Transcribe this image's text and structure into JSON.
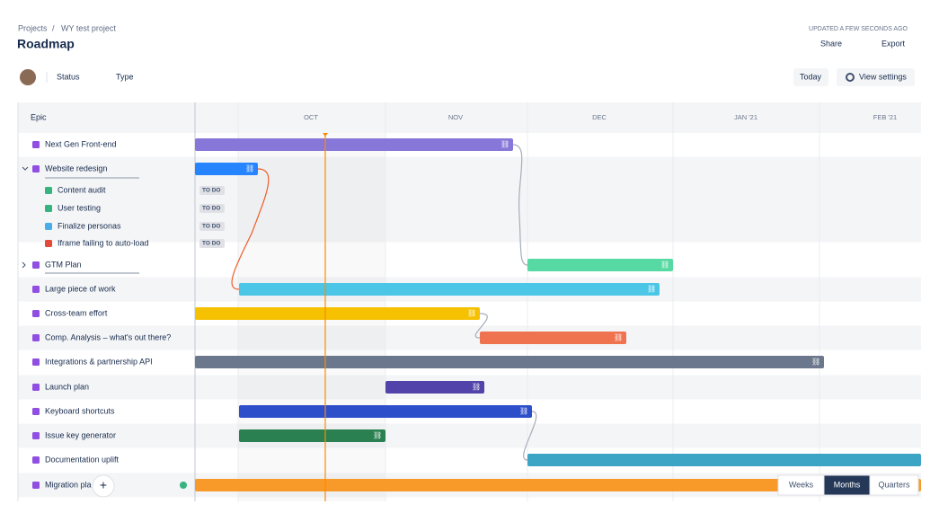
{
  "header": {
    "breadcrumb": [
      "Projects",
      "WY test project"
    ],
    "separator": "/",
    "title": "Roadmap",
    "updated": "UPDATED A FEW SECONDS AGO",
    "actions": [
      "Share",
      "Export"
    ]
  },
  "toolbar": {
    "filters": [
      "Status",
      "Type"
    ],
    "buttons": [
      "Today",
      "View settings"
    ]
  },
  "timeline": {
    "column_header": "Epic",
    "months": [
      "OCT",
      "NOV",
      "DEC",
      "JAN '21",
      "FEB '21"
    ],
    "rows": [
      {
        "label": "Next Gen Front-end"
      },
      {
        "label": "Website redesign",
        "children": [
          {
            "label": "Content audit",
            "status": "TO DO"
          },
          {
            "label": "User testing",
            "status": "TO DO"
          },
          {
            "label": "Finalize personas",
            "status": "TO DO"
          },
          {
            "label": "Iframe failing to auto-load",
            "status": "TO DO"
          }
        ]
      },
      {
        "label": "GTM Plan"
      },
      {
        "label": "Large piece of work"
      },
      {
        "label": "Cross-team effort"
      },
      {
        "label": "Comp. Analysis – what's out there?"
      },
      {
        "label": "Integrations & partnership API"
      },
      {
        "label": "Launch plan"
      },
      {
        "label": "Keyboard shortcuts"
      },
      {
        "label": "Issue key generator"
      },
      {
        "label": "Documentation uplift"
      },
      {
        "label": "Migration pla"
      }
    ]
  },
  "view_modes": [
    "Weeks",
    "Months",
    "Quarters"
  ]
}
